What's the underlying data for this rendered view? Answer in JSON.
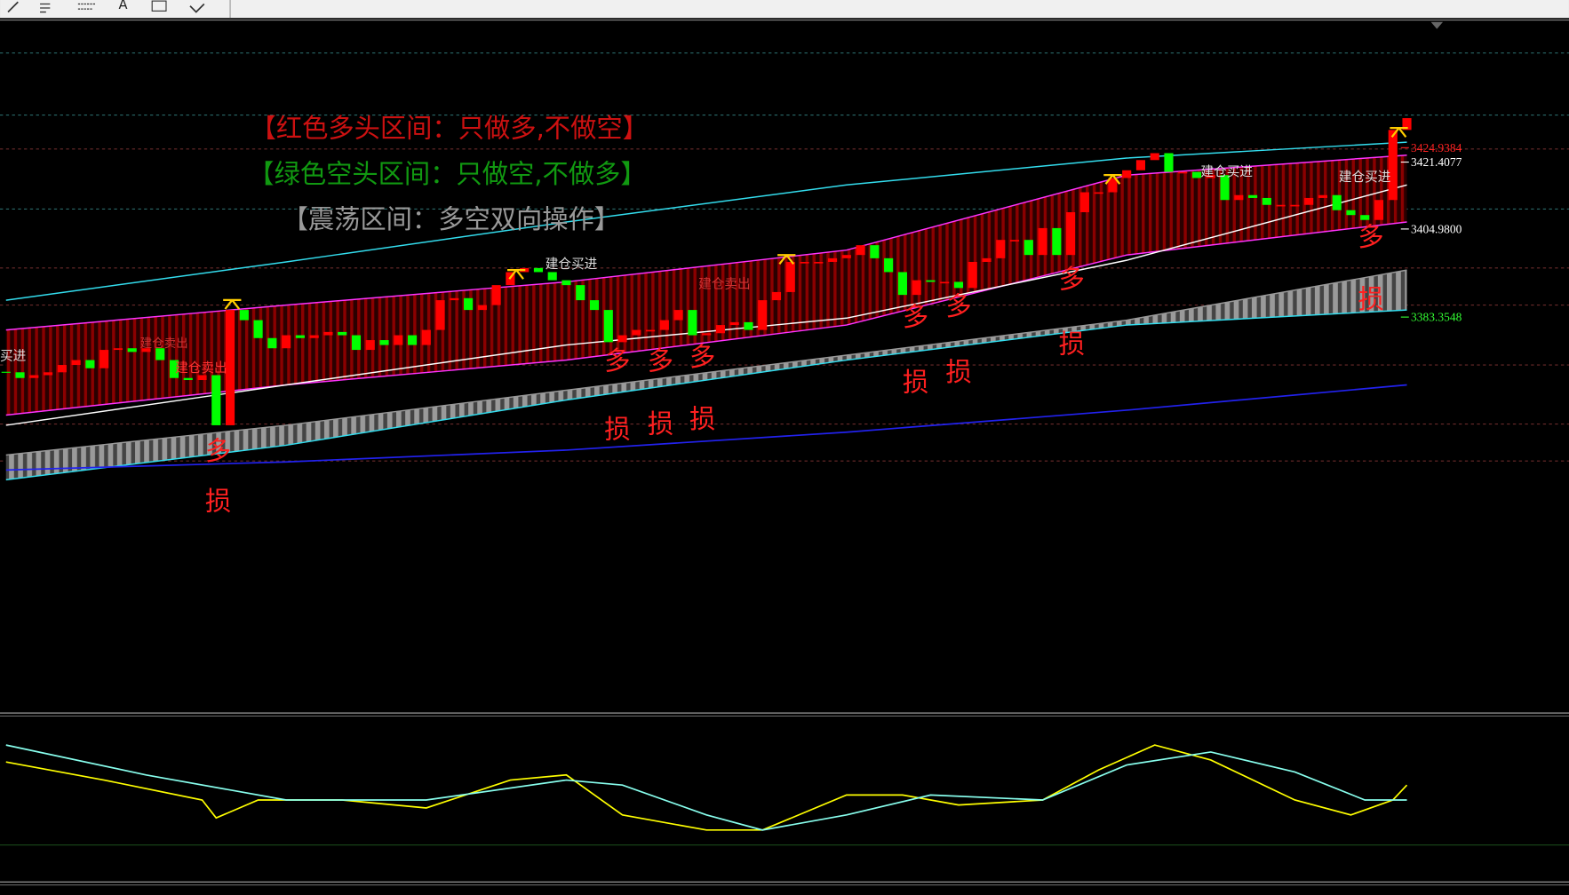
{
  "toolbar": {
    "items": [
      "A"
    ]
  },
  "chart_data": [
    {
      "type": "candlestick",
      "ylim": [
        3286.4,
        3455.8
      ],
      "color_up": "#ff0000",
      "color_down": "#00ff00",
      "close": [
        3369.8,
        3368.4,
        3369.1,
        3369.8,
        3371.6,
        3372.8,
        3370.8,
        3375.3,
        3375.7,
        3374.8,
        3375.7,
        3372.8,
        3368.4,
        3367.9,
        3369.1,
        3356.8,
        3385.1,
        3382.6,
        3378.2,
        3375.7,
        3378.9,
        3378.2,
        3378.9,
        3379.7,
        3378.9,
        3375.3,
        3377.7,
        3376.5,
        3378.9,
        3376.5,
        3380.2,
        3387.5,
        3388.0,
        3385.1,
        3386.3,
        3391.2,
        3394.4,
        3395.4,
        3394.4,
        3392.4,
        3391.2,
        3387.5,
        3385.1,
        3377.2,
        3378.9,
        3380.2,
        3380.2,
        3382.6,
        3385.1,
        3378.9,
        3379.4,
        3381.4,
        3382.1,
        3380.2,
        3387.5,
        3389.5,
        3396.9,
        3396.9,
        3396.9,
        3397.8,
        3398.6,
        3401.0,
        3397.8,
        3394.4,
        3388.8,
        3392.4,
        3392.0,
        3392.0,
        3390.5,
        3396.9,
        3397.8,
        3402.3,
        3402.3,
        3398.6,
        3405.2,
        3398.6,
        3409.1,
        3414.0,
        3414.0,
        3417.5,
        3419.4,
        3421.9,
        3423.6,
        3419.0,
        3419.0,
        3417.5,
        3418.2,
        3412.1,
        3413.3,
        3412.6,
        3410.9,
        3410.9,
        3410.9,
        3412.6,
        3413.3,
        3409.6,
        3408.4,
        3407.2,
        3412.1,
        3429.3,
        3432.2
      ],
      "lines": [
        {
          "color": "#33ddee",
          "x": [
            0,
            20,
            40,
            60,
            80,
            100
          ],
          "values": [
            3387.5,
            3396.9,
            3406.7,
            3415.8,
            3422.4,
            3426.3
          ]
        },
        {
          "color": "#ff33ff",
          "x": [
            0,
            20,
            40,
            60,
            80,
            100
          ],
          "values": [
            3380.2,
            3386.3,
            3392.0,
            3399.8,
            3418.2,
            3423.1
          ]
        },
        {
          "color": "#ff33ff",
          "x": [
            0,
            20,
            40,
            60,
            80,
            100
          ],
          "values": [
            3359.3,
            3366.7,
            3372.8,
            3381.4,
            3398.6,
            3406.7
          ]
        },
        {
          "color": "#999999",
          "x": [
            0,
            20,
            40,
            60,
            80,
            100
          ],
          "values": [
            3349.5,
            3356.8,
            3365.4,
            3374.0,
            3382.6,
            3394.9
          ]
        },
        {
          "color": "#33ddee",
          "x": [
            0,
            20,
            40,
            60,
            80,
            100
          ],
          "values": [
            3343.4,
            3351.9,
            3363.0,
            3372.8,
            3381.4,
            3385.1
          ]
        },
        {
          "color": "#2222ee",
          "x": [
            0,
            20,
            40,
            60,
            80,
            100
          ],
          "values": [
            3345.8,
            3347.8,
            3350.7,
            3355.1,
            3360.5,
            3366.7
          ]
        },
        {
          "color": "#ffffff",
          "x": [
            0,
            20,
            40,
            60,
            80,
            100
          ],
          "values": [
            3356.8,
            3366.7,
            3376.5,
            3383.1,
            3397.3,
            3415.8
          ]
        }
      ],
      "price_labels": [
        {
          "value": 3424.9384,
          "label": "3424.9384",
          "color": "#ff2222"
        },
        {
          "value": 3421.4077,
          "label": "3421.4077",
          "color": "#ffffff"
        },
        {
          "value": 3404.98,
          "label": "3404.9800",
          "color": "#ffffff"
        },
        {
          "value": 3383.3548,
          "label": "3383.3548",
          "color": "#33ff33"
        }
      ],
      "annotations": [
        {
          "text": "【红色多头区间：只做多,不做空】",
          "color": "#cc1111"
        },
        {
          "text": "【绿色空头区间：只做空,不做多】",
          "color": "#119911"
        },
        {
          "text": "【震荡区间：多空双向操作】",
          "color": "#999999"
        },
        {
          "text": "买进",
          "color": "#dddddd"
        },
        {
          "text": "建仓卖出",
          "color": "#cc3333"
        },
        {
          "text": "建仓买进",
          "color": "#dddddd"
        },
        {
          "text": "建仓卖出",
          "color": "#ff3333"
        },
        {
          "text": "建仓买进",
          "color": "#dddddd"
        },
        {
          "text": "建仓卖出",
          "color": "#cc3333"
        },
        {
          "text": "建仓买进",
          "color": "#dddddd"
        }
      ],
      "signals": [
        "多",
        "损",
        "多",
        "损",
        "多",
        "损",
        "多",
        "损",
        "多",
        "损",
        "多",
        "损",
        "多",
        "损",
        "多",
        "损"
      ]
    },
    {
      "type": "line",
      "ylim": [
        0,
        100
      ],
      "series": [
        {
          "color": "#ffff00",
          "x": [
            0,
            7,
            14,
            15,
            18,
            24,
            30,
            36,
            40,
            44,
            50,
            54,
            60,
            64,
            68,
            74,
            78,
            82,
            86,
            92,
            96,
            99,
            100
          ],
          "values": [
            72.3,
            61.4,
            49.4,
            38.6,
            49.4,
            49.4,
            44.6,
            61.4,
            64.5,
            40.4,
            31.3,
            31.3,
            52.4,
            52.4,
            46.4,
            49.4,
            67.5,
            82.5,
            73.5,
            49.4,
            40.4,
            49.4,
            58.4
          ]
        },
        {
          "color": "#88ffee",
          "x": [
            0,
            10,
            20,
            30,
            40,
            44,
            50,
            54,
            60,
            66,
            74,
            80,
            86,
            92,
            97,
            100
          ],
          "values": [
            82.5,
            64.5,
            49.4,
            49.4,
            61.4,
            58.4,
            40.4,
            31.3,
            40.4,
            52.4,
            49.4,
            70.5,
            78.3,
            66.3,
            49.4,
            49.4
          ]
        }
      ]
    }
  ]
}
